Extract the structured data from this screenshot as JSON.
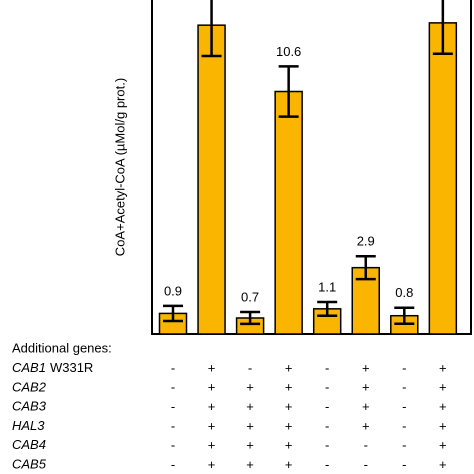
{
  "chart_data": {
    "type": "bar",
    "ylabel": "CoA+Acetyl-CoA (µMol/g prot.)",
    "values": [
      0.9,
      13.5,
      0.7,
      10.6,
      1.1,
      2.9,
      0.8,
      13.6
    ],
    "errors": [
      0.33,
      1.35,
      0.26,
      1.1,
      0.3,
      0.5,
      0.35,
      1.35
    ],
    "value_labels": [
      "0.9",
      null,
      "0.7",
      "10.6",
      "1.1",
      "2.9",
      "0.8",
      null
    ],
    "color": "#f9b500",
    "ylim": [
      0,
      14.6
    ]
  },
  "table": {
    "title": "Additional genes:",
    "rows": [
      {
        "gene": "CAB1",
        "allele": "W331R",
        "signs": [
          "-",
          "+",
          "-",
          "+",
          "-",
          "+",
          "-",
          "+"
        ]
      },
      {
        "gene": "CAB2",
        "signs": [
          "-",
          "+",
          "+",
          "+",
          "-",
          "+",
          "-",
          "+"
        ]
      },
      {
        "gene": "CAB3",
        "signs": [
          "-",
          "+",
          "+",
          "+",
          "-",
          "+",
          "-",
          "+"
        ]
      },
      {
        "gene": "HAL3",
        "signs": [
          "-",
          "+",
          "+",
          "+",
          "-",
          "+",
          "-",
          "+"
        ]
      },
      {
        "gene": "CAB4",
        "signs": [
          "-",
          "+",
          "+",
          "+",
          "-",
          "-",
          "-",
          "+"
        ]
      },
      {
        "gene": "CAB5",
        "signs": [
          "-",
          "+",
          "+",
          "+",
          "-",
          "-",
          "-",
          "+"
        ]
      }
    ]
  }
}
